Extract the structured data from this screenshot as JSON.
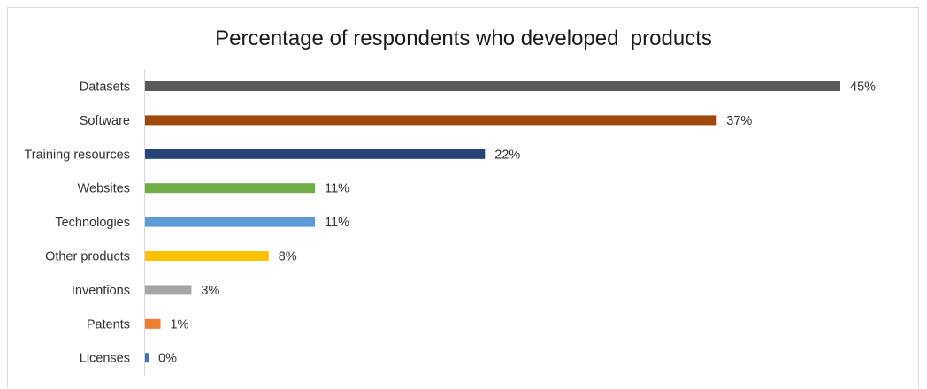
{
  "chart_data": {
    "type": "bar",
    "orientation": "horizontal",
    "title": "Percentage of respondents who developed  products",
    "xlabel": "",
    "ylabel": "",
    "xlim": [
      0,
      45
    ],
    "grid": false,
    "legend": "none",
    "categories": [
      "Datasets",
      "Software",
      "Training resources",
      "Websites",
      "Technologies",
      "Other products",
      "Inventions",
      "Patents",
      "Licenses"
    ],
    "values": [
      45,
      37,
      22,
      11,
      11,
      8,
      3,
      1,
      0
    ],
    "value_labels": [
      "45%",
      "37%",
      "22%",
      "11%",
      "11%",
      "8%",
      "3%",
      "1%",
      "0%"
    ],
    "colors": [
      "#595959",
      "#9e480e",
      "#264478",
      "#70ad47",
      "#5b9bd5",
      "#ffc000",
      "#a5a5a5",
      "#ed7d31",
      "#4472c4"
    ]
  }
}
